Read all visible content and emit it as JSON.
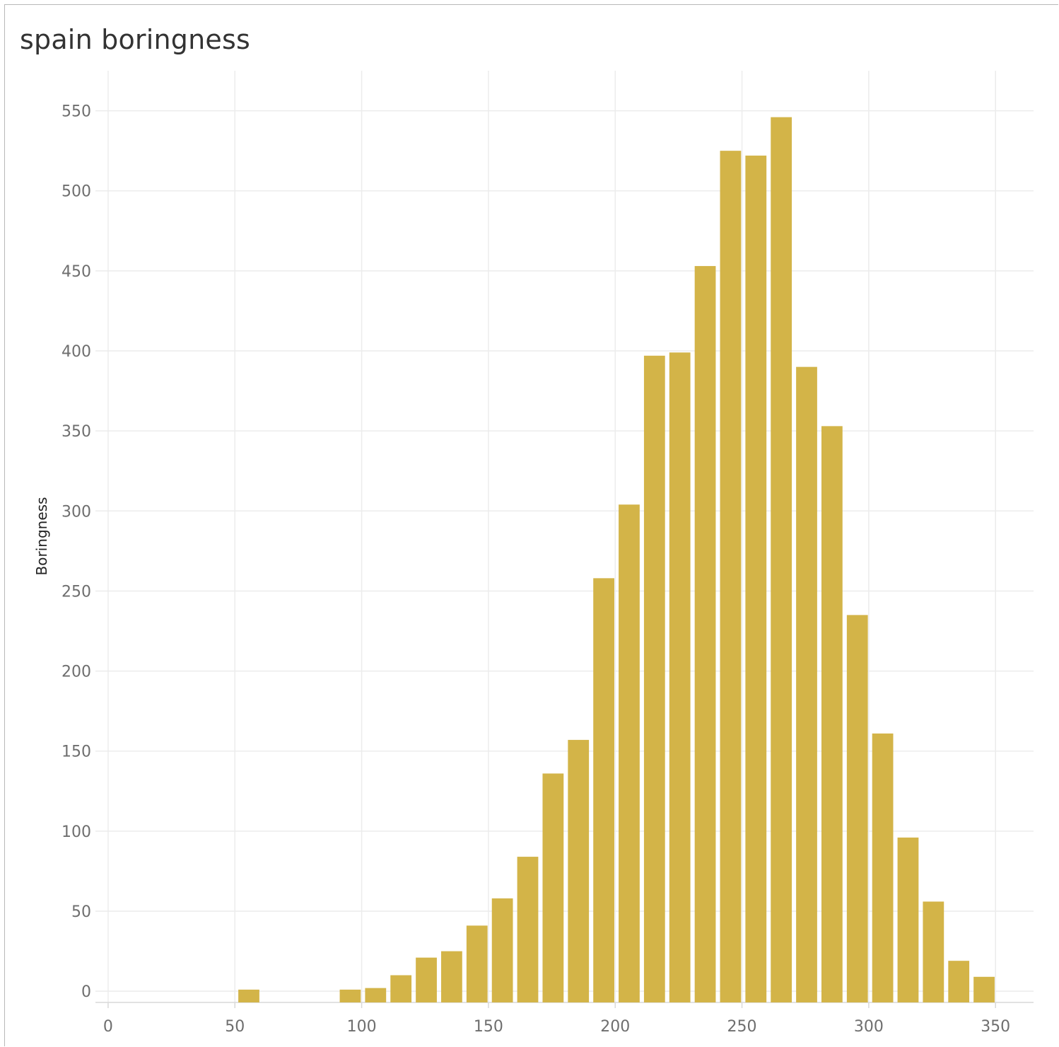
{
  "chart_data": {
    "type": "bar",
    "title": "spain boringness",
    "xlabel": "",
    "ylabel": "Boringness",
    "xlim": [
      -5,
      365
    ],
    "ylim": [
      -7,
      575
    ],
    "x_ticks": [
      0,
      50,
      100,
      150,
      200,
      250,
      300,
      350
    ],
    "y_ticks": [
      0,
      50,
      100,
      150,
      200,
      250,
      300,
      350,
      400,
      450,
      500,
      550
    ],
    "bin_width": 10,
    "grid": true,
    "bar_color": "#d3b448",
    "x": [
      50,
      90,
      100,
      110,
      120,
      130,
      140,
      150,
      160,
      170,
      180,
      190,
      200,
      210,
      220,
      230,
      240,
      250,
      260,
      270,
      280,
      290,
      300,
      310,
      320,
      330,
      340
    ],
    "values": [
      1,
      1,
      2,
      10,
      21,
      25,
      41,
      58,
      84,
      136,
      157,
      258,
      304,
      397,
      399,
      453,
      525,
      522,
      546,
      390,
      353,
      235,
      161,
      96,
      56,
      19,
      9
    ]
  }
}
